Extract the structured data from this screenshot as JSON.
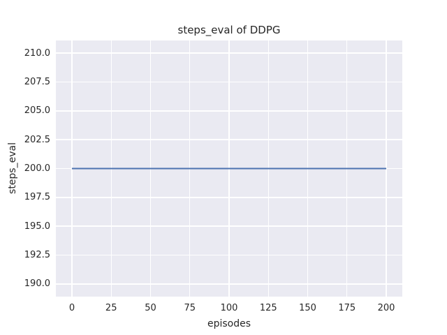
{
  "figure": {
    "background": "#ffffff",
    "axes_background": "#eaeaf2",
    "grid_color": "#ffffff",
    "text_color": "#262626"
  },
  "chart_data": {
    "type": "line",
    "title": "steps_eval of DDPG",
    "xlabel": "episodes",
    "ylabel": "steps_eval",
    "xlim": [
      -10.2,
      210.2
    ],
    "ylim": [
      188.9,
      211.1
    ],
    "xticks": [
      0,
      25,
      50,
      75,
      100,
      125,
      150,
      175,
      200
    ],
    "xtick_labels": [
      "0",
      "25",
      "50",
      "75",
      "100",
      "125",
      "150",
      "175",
      "200"
    ],
    "yticks": [
      190.0,
      192.5,
      195.0,
      197.5,
      200.0,
      202.5,
      205.0,
      207.5,
      210.0
    ],
    "ytick_labels": [
      "190.0",
      "192.5",
      "195.0",
      "197.5",
      "200.0",
      "202.5",
      "205.0",
      "207.5",
      "210.0"
    ],
    "grid": true,
    "legend": false,
    "series": [
      {
        "name": "DDPG steps_eval",
        "color": "#4c72b0",
        "linewidth": 2,
        "x": [
          0,
          200
        ],
        "y": [
          200,
          200
        ]
      }
    ]
  }
}
